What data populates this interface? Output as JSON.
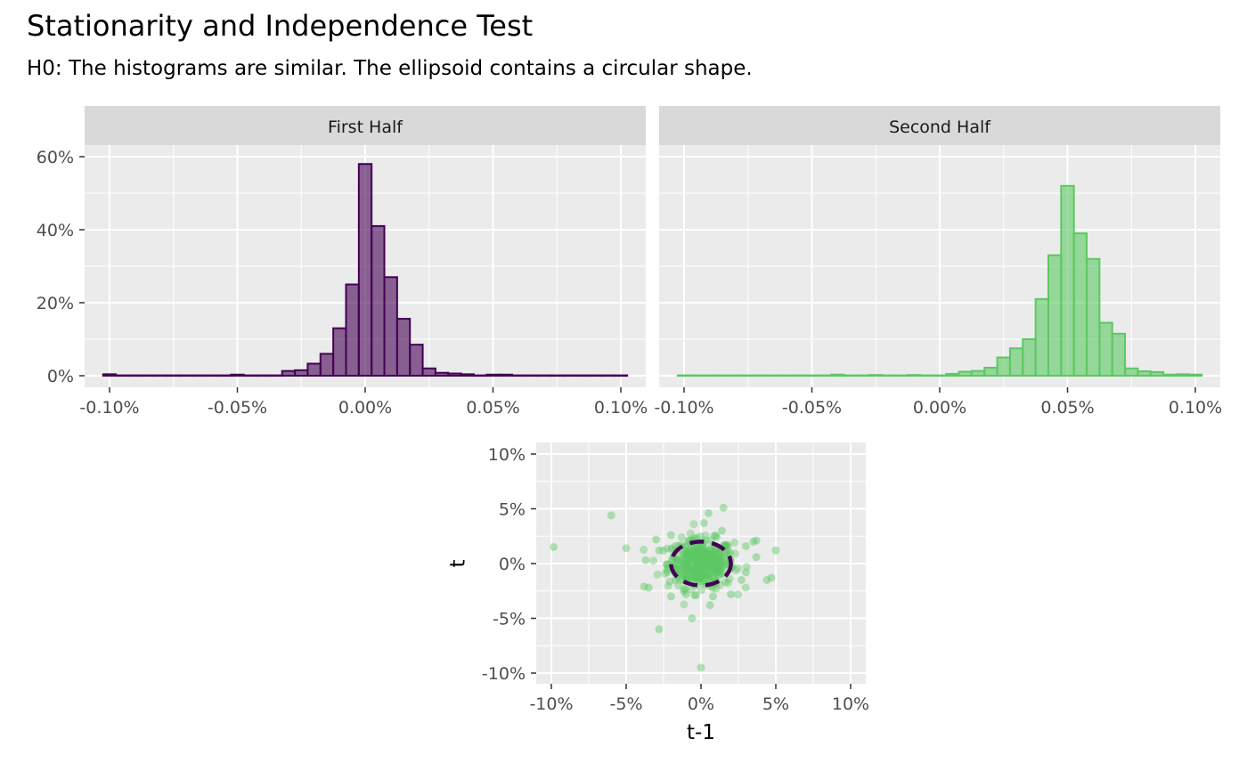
{
  "title": "Stationarity and Independence Test",
  "subtitle": "H0: The histograms are similar. The ellipsoid contains a circular shape.",
  "colors": {
    "first": "#440154",
    "second": "#5CC863",
    "panel_bg": "#EBEBEB",
    "strip_bg": "#D9D9D9",
    "grid": "#FFFFFF"
  },
  "chart_data": [
    {
      "type": "bar",
      "facet": "First Half",
      "x_tick_labels": [
        "-0.10%",
        "-0.05%",
        "0.00%",
        "0.05%",
        "0.10%"
      ],
      "y_tick_labels": [
        "0%",
        "20%",
        "40%",
        "60%"
      ],
      "xlim": [
        -0.001,
        0.001
      ],
      "ylim": [
        0,
        0.6
      ],
      "bin_width": 5e-05,
      "bin_centers": [
        -0.001,
        -0.00095,
        -0.0009,
        -0.00085,
        -0.0008,
        -0.00075,
        -0.0007,
        -0.00065,
        -0.0006,
        -0.00055,
        -0.0005,
        -0.00045,
        -0.0004,
        -0.00035,
        -0.0003,
        -0.00025,
        -0.0002,
        -0.00015,
        -0.0001,
        -5e-05,
        0,
        5e-05,
        0.0001,
        0.00015,
        0.0002,
        0.00025,
        0.0003,
        0.00035,
        0.0004,
        0.00045,
        0.0005,
        0.00055,
        0.0006,
        0.00065,
        0.0007,
        0.00075,
        0.0008,
        0.00085,
        0.0009,
        0.00095,
        0.001
      ],
      "values": [
        0.004,
        0.001,
        0.001,
        0.001,
        0.001,
        0.001,
        0.001,
        0.001,
        0.001,
        0.001,
        0.003,
        0.001,
        0.001,
        0.001,
        0.013,
        0.015,
        0.033,
        0.06,
        0.13,
        0.25,
        0.58,
        0.41,
        0.27,
        0.156,
        0.085,
        0.02,
        0.008,
        0.006,
        0.004,
        0.001,
        0.003,
        0.003,
        0.001,
        0.001,
        0.001,
        0.001,
        0.001,
        0.001,
        0.001,
        0.001,
        0.001
      ]
    },
    {
      "type": "bar",
      "facet": "Second Half",
      "x_tick_labels": [
        "-0.10%",
        "-0.05%",
        "0.00%",
        "0.05%",
        "0.10%"
      ],
      "xlim": [
        -0.001,
        0.001
      ],
      "ylim": [
        0,
        0.6
      ],
      "bin_width": 5e-05,
      "bin_centers": [
        -0.001,
        -0.00095,
        -0.0009,
        -0.00085,
        -0.0008,
        -0.00075,
        -0.0007,
        -0.00065,
        -0.0006,
        -0.00055,
        -0.0005,
        -0.00045,
        -0.0004,
        -0.00035,
        -0.0003,
        -0.00025,
        -0.0002,
        -0.00015,
        -0.0001,
        -5e-05,
        0,
        5e-05,
        0.0001,
        0.00015,
        0.0002,
        0.00025,
        0.0003,
        0.00035,
        0.0004,
        0.00045,
        0.0005,
        0.00055,
        0.0006,
        0.00065,
        0.0007,
        0.00075,
        0.0008,
        0.00085,
        0.0009,
        0.00095,
        0.001
      ],
      "values": [
        0.001,
        0.001,
        0.001,
        0.001,
        0.001,
        0.001,
        0.001,
        0.001,
        0.001,
        0.001,
        0.001,
        0.001,
        0.003,
        0.001,
        0.001,
        0.002,
        0.001,
        0.001,
        0.002,
        0.001,
        0.001,
        0.005,
        0.011,
        0.013,
        0.022,
        0.05,
        0.075,
        0.1,
        0.21,
        0.33,
        0.52,
        0.39,
        0.32,
        0.145,
        0.115,
        0.02,
        0.012,
        0.01,
        0.003,
        0.004,
        0.003
      ]
    },
    {
      "type": "scatter",
      "xlabel": "t-1",
      "ylabel": "t",
      "x_tick_labels": [
        "-10%",
        "-5%",
        "0%",
        "5%",
        "10%"
      ],
      "y_tick_labels": [
        "-10%",
        "-5%",
        "0%",
        "5%",
        "10%"
      ],
      "xlim": [
        -0.1,
        0.1
      ],
      "ylim": [
        -0.1,
        0.1
      ],
      "ellipse": {
        "center": [
          0,
          0
        ],
        "rx": 0.02,
        "ry": 0.02,
        "style": "dashed"
      },
      "points": [
        [
          -0.0985,
          0.015
        ],
        [
          -0.06,
          0.044
        ],
        [
          -0.05,
          0.014
        ],
        [
          -0.028,
          -0.06
        ],
        [
          -0.006,
          -0.05
        ],
        [
          0.0,
          -0.095
        ],
        [
          0.015,
          0.051
        ],
        [
          0.005,
          0.046
        ],
        [
          0.05,
          0.012
        ],
        [
          0.044,
          -0.015
        ],
        [
          0.047,
          -0.013
        ],
        [
          0.037,
          0.021
        ],
        [
          0.035,
          0.02
        ],
        [
          0.03,
          0.016
        ],
        [
          -0.035,
          -0.022
        ],
        [
          -0.038,
          -0.021
        ],
        [
          -0.037,
          0.003
        ],
        [
          -0.03,
          0.022
        ],
        [
          0.002,
          0.037
        ],
        [
          -0.02,
          0.026
        ],
        [
          0.02,
          -0.028
        ],
        [
          0.006,
          -0.038
        ],
        [
          -0.02,
          -0.03
        ],
        [
          0.008,
          -0.03
        ],
        [
          -0.028,
          0.012
        ],
        [
          0.027,
          -0.015
        ],
        [
          0.03,
          -0.008
        ],
        [
          0.037,
          0.006
        ],
        [
          0.014,
          0.03
        ],
        [
          -0.01,
          -0.028
        ]
      ]
    }
  ]
}
